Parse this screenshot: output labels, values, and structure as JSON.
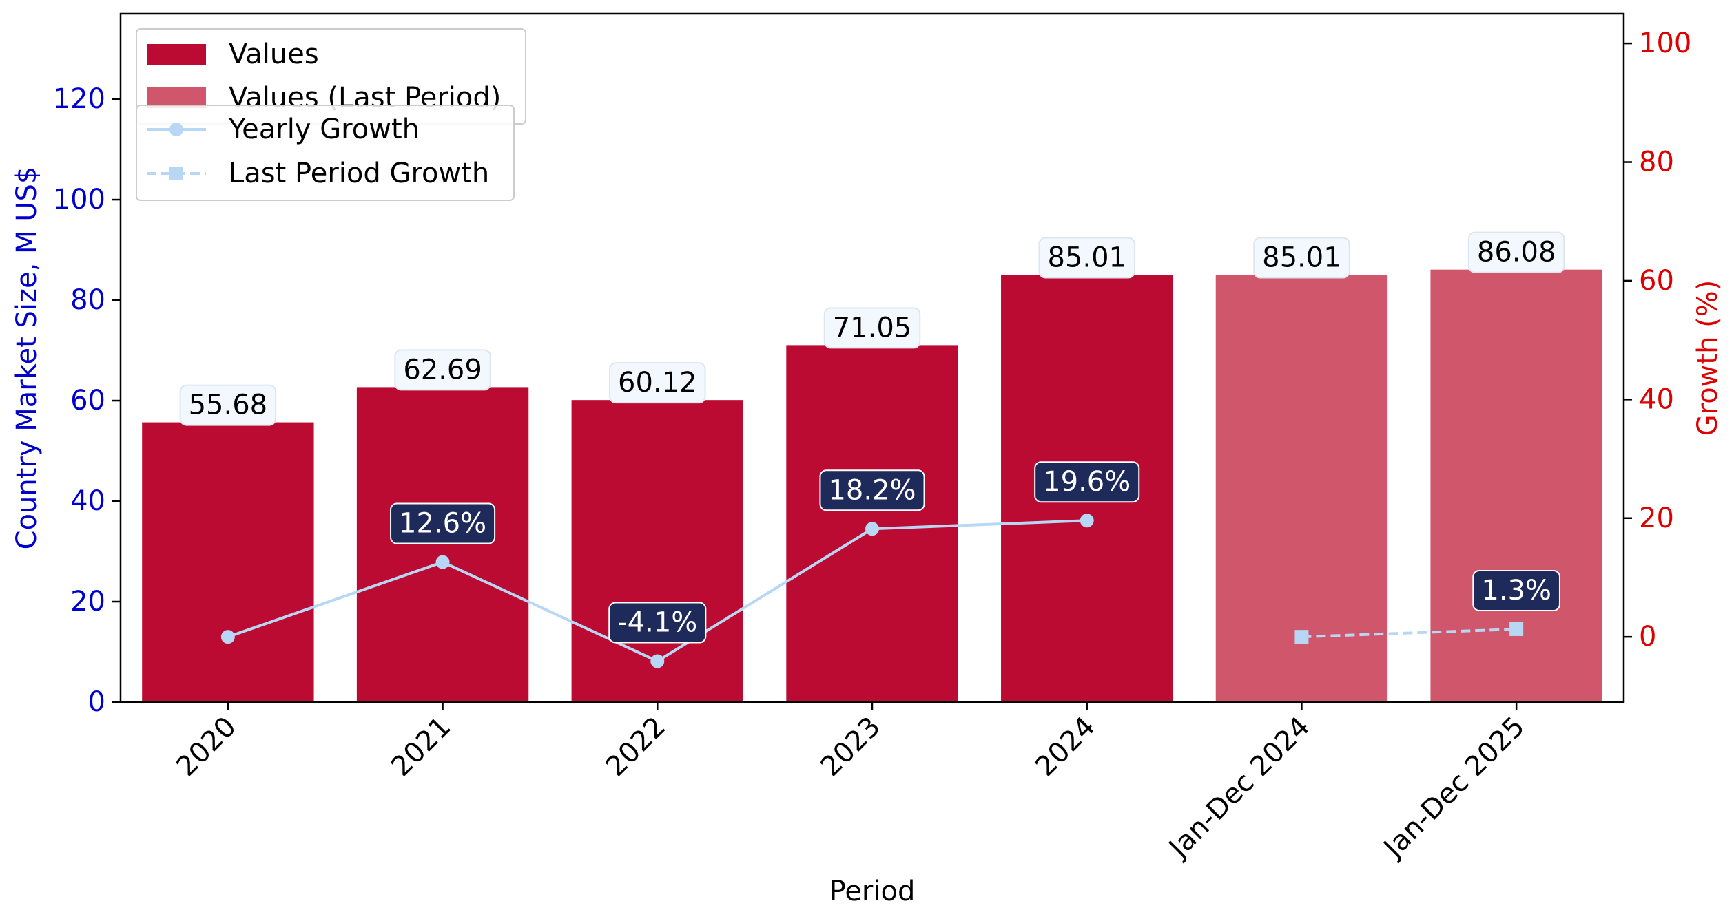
{
  "colors": {
    "bar": "#BC0B32",
    "bar_last_period": "#D0566C",
    "growth_line": "#B8D7F5",
    "left_axis": "#0000CC",
    "right_axis": "#DD0000",
    "value_label_bg": "#F2F8FD",
    "growth_label_bg": "#1E2A5A"
  },
  "chart_data": {
    "type": "bar",
    "xlabel": "Period",
    "ylabel": "Country Market Size, M US$",
    "y2label": "Growth (%)",
    "categories": [
      "2020",
      "2021",
      "2022",
      "2023",
      "2024",
      "Jan-Dec 2024",
      "Jan-Dec 2025"
    ],
    "ylim": [
      0,
      137
    ],
    "yticks": [
      0,
      20,
      40,
      60,
      80,
      100,
      120
    ],
    "y2lim": [
      -11,
      105
    ],
    "y2ticks": [
      0,
      20,
      40,
      60,
      80,
      100
    ],
    "legend_position": "top-left",
    "grid": false,
    "series": [
      {
        "name": "Values",
        "type": "bar",
        "values": [
          55.68,
          62.69,
          60.12,
          71.05,
          85.01,
          null,
          null
        ],
        "labels": [
          "55.68",
          "62.69",
          "60.12",
          "71.05",
          "85.01",
          null,
          null
        ]
      },
      {
        "name": "Values (Last Period)",
        "type": "bar",
        "values": [
          null,
          null,
          null,
          null,
          null,
          85.01,
          86.08
        ],
        "labels": [
          null,
          null,
          null,
          null,
          null,
          "85.01",
          "86.08"
        ]
      },
      {
        "name": "Yearly Growth",
        "type": "line",
        "axis": "right",
        "marker": "circle",
        "values": [
          0,
          12.6,
          -4.1,
          18.2,
          19.6,
          null,
          null
        ],
        "labels": [
          null,
          "12.6%",
          "-4.1%",
          "18.2%",
          "19.6%",
          null,
          null
        ]
      },
      {
        "name": "Last Period Growth",
        "type": "line",
        "axis": "right",
        "marker": "square",
        "dashed": true,
        "values": [
          null,
          null,
          null,
          null,
          null,
          0,
          1.3
        ],
        "labels": [
          null,
          null,
          null,
          null,
          null,
          null,
          "1.3%"
        ]
      }
    ]
  }
}
